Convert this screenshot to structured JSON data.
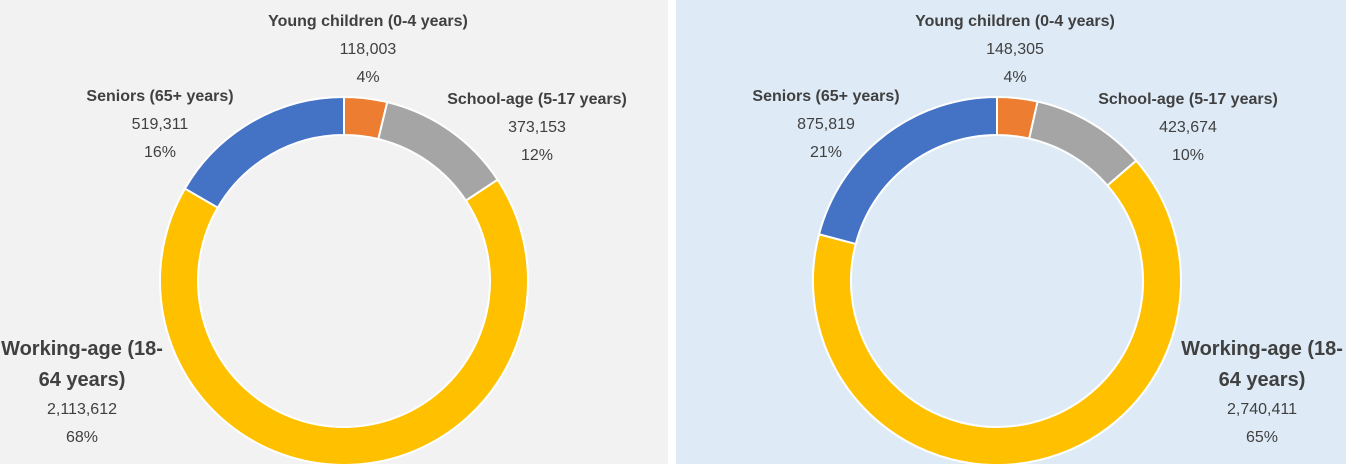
{
  "chart_data": [
    {
      "type": "donut",
      "categories": [
        "Young children (0-4 years)",
        "School-age (5-17 years)",
        "Working-age (18-64 years)",
        "Seniors (65+ years)"
      ],
      "values": [
        118003,
        373153,
        2113612,
        519311
      ],
      "value_labels": [
        "118,003",
        "373,153",
        "2,113,612",
        "519,311"
      ],
      "percents": [
        4,
        12,
        68,
        16
      ],
      "percent_labels": [
        "4%",
        "12%",
        "68%",
        "16%"
      ],
      "colors": [
        "#ed7d31",
        "#a5a5a5",
        "#ffc000",
        "#4472c4"
      ]
    },
    {
      "type": "donut",
      "categories": [
        "Young children (0-4 years)",
        "School-age (5-17 years)",
        "Working-age (18-64 years)",
        "Seniors (65+ years)"
      ],
      "values": [
        148305,
        423674,
        2740411,
        875819
      ],
      "value_labels": [
        "148,305",
        "423,674",
        "2,740,411",
        "875,819"
      ],
      "percents": [
        4,
        10,
        65,
        21
      ],
      "percent_labels": [
        "4%",
        "10%",
        "65%",
        "21%"
      ],
      "colors": [
        "#ed7d31",
        "#a5a5a5",
        "#ffc000",
        "#4472c4"
      ]
    }
  ]
}
